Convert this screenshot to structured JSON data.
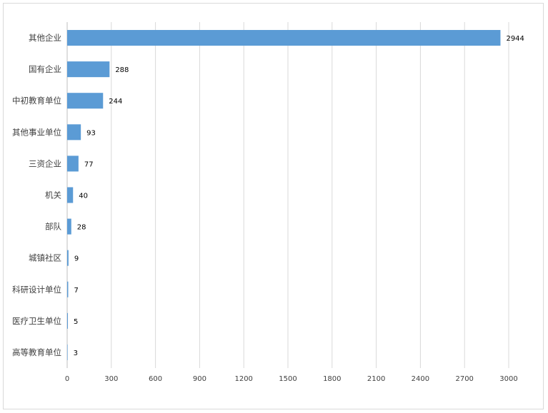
{
  "chart_data": {
    "type": "bar",
    "orientation": "horizontal",
    "title": "",
    "xlabel": "",
    "ylabel": "",
    "categories": [
      "其他企业",
      "国有企业",
      "中初教育单位",
      "其他事业单位",
      "三资企业",
      "机关",
      "部队",
      "城镇社区",
      "科研设计单位",
      "医疗卫生单位",
      "高等教育单位"
    ],
    "values": [
      2944,
      288,
      244,
      93,
      77,
      40,
      28,
      9,
      7,
      5,
      3
    ],
    "value_labels": [
      "2944",
      "288",
      "244",
      "93",
      "77",
      "40",
      "28",
      "9",
      "7",
      "5",
      "3"
    ],
    "xlim": [
      0,
      3000
    ],
    "xticks": [
      0,
      300,
      600,
      900,
      1200,
      1500,
      1800,
      2100,
      2400,
      2700,
      3000
    ],
    "xtick_labels": [
      "0",
      "300",
      "600",
      "900",
      "1200",
      "1500",
      "1800",
      "2100",
      "2400",
      "2700",
      "3000"
    ],
    "grid": "vertical",
    "legend": "none",
    "bar_color": "#5b9bd5",
    "grid_color": "#d9d9d9",
    "axis_color": "#bfbfbf"
  }
}
